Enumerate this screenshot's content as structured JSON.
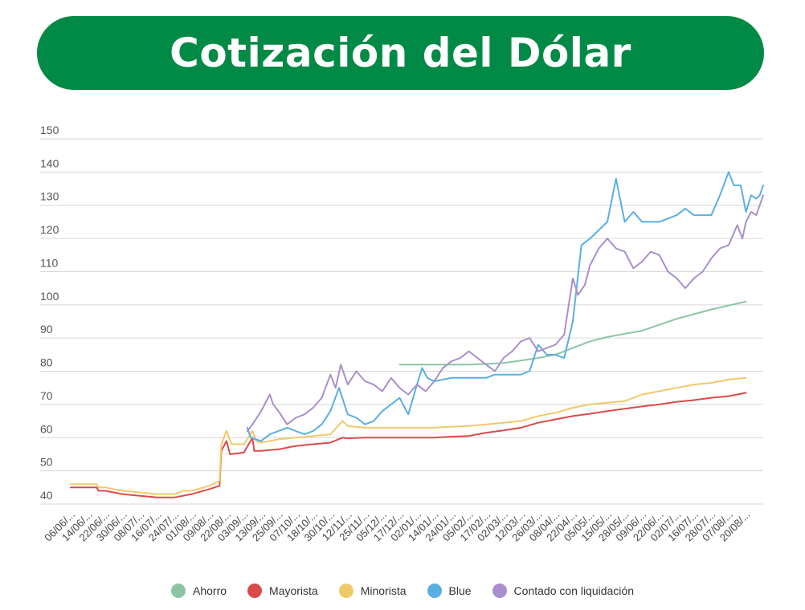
{
  "header": {
    "title": "Cotización del Dólar"
  },
  "chart_data": {
    "type": "line",
    "title": "Cotización del Dólar",
    "xlabel": "",
    "ylabel": "",
    "ylim": [
      40,
      150
    ],
    "yticks": [
      40,
      50,
      60,
      70,
      80,
      90,
      100,
      110,
      120,
      130,
      140,
      150
    ],
    "grid": true,
    "legend": "bottom",
    "x_tick_labels": [
      "06/06/...",
      "14/06/...",
      "22/06/...",
      "30/06/...",
      "08/07/...",
      "16/07/...",
      "24/07/...",
      "01/08/...",
      "09/08/...",
      "22/08/...",
      "03/09/...",
      "13/09/...",
      "25/09/...",
      "07/10/...",
      "18/10/...",
      "30/10/...",
      "12/11/...",
      "25/11/...",
      "05/12/...",
      "17/12/...",
      "02/01/...",
      "14/01/...",
      "24/01/...",
      "05/02/...",
      "17/02/...",
      "02/03/...",
      "12/03/...",
      "26/03/...",
      "08/04/...",
      "22/04/...",
      "05/05/...",
      "15/05/...",
      "28/05/...",
      "09/06/...",
      "22/06/...",
      "02/07/...",
      "16/07/...",
      "28/07/...",
      "07/08/...",
      "20/08/..."
    ],
    "series": [
      {
        "name": "Ahorro",
        "color": "#8cc5a4",
        "points": [
          [
            19.0,
            82
          ],
          [
            19.5,
            82
          ],
          [
            20,
            82
          ],
          [
            21,
            82
          ],
          [
            22,
            82
          ],
          [
            23,
            82
          ],
          [
            24,
            82.2
          ],
          [
            25,
            82.5
          ],
          [
            26,
            83.2
          ],
          [
            27,
            84
          ],
          [
            28,
            85
          ],
          [
            29,
            87
          ],
          [
            30,
            89
          ],
          [
            31,
            90.3
          ],
          [
            32,
            91.3
          ],
          [
            33,
            92.2
          ],
          [
            34,
            94
          ],
          [
            35,
            95.8
          ],
          [
            36,
            97.2
          ],
          [
            37,
            98.6
          ],
          [
            38,
            99.8
          ],
          [
            39,
            101
          ]
        ]
      },
      {
        "name": "Mayorista",
        "color": "#d94b4b",
        "points": [
          [
            0,
            45
          ],
          [
            1.5,
            45
          ],
          [
            1.6,
            44
          ],
          [
            2,
            44
          ],
          [
            3,
            43
          ],
          [
            4,
            42.5
          ],
          [
            5,
            42
          ],
          [
            6,
            42
          ],
          [
            7,
            43
          ],
          [
            8,
            44.5
          ],
          [
            8.6,
            45.5
          ],
          [
            8.7,
            56
          ],
          [
            9.0,
            59
          ],
          [
            9.2,
            55
          ],
          [
            10,
            55.5
          ],
          [
            10.5,
            60
          ],
          [
            10.6,
            56
          ],
          [
            11,
            56
          ],
          [
            12,
            56.5
          ],
          [
            13,
            57.5
          ],
          [
            14,
            58
          ],
          [
            15,
            58.5
          ],
          [
            15.7,
            60
          ],
          [
            16,
            59.8
          ],
          [
            17,
            60
          ],
          [
            18,
            60
          ],
          [
            19,
            60
          ],
          [
            20,
            60
          ],
          [
            21,
            60
          ],
          [
            22,
            60.3
          ],
          [
            23,
            60.5
          ],
          [
            24,
            61.5
          ],
          [
            25,
            62.2
          ],
          [
            26,
            63
          ],
          [
            27,
            64.5
          ],
          [
            28,
            65.5
          ],
          [
            29,
            66.5
          ],
          [
            30,
            67.2
          ],
          [
            31,
            68
          ],
          [
            32,
            68.7
          ],
          [
            33,
            69.4
          ],
          [
            34,
            70
          ],
          [
            35,
            70.8
          ],
          [
            36,
            71.3
          ],
          [
            37,
            72
          ],
          [
            38,
            72.5
          ],
          [
            39,
            73.5
          ]
        ]
      },
      {
        "name": "Minorista",
        "color": "#f0c96b",
        "points": [
          [
            0,
            46
          ],
          [
            1.5,
            46
          ],
          [
            1.6,
            45
          ],
          [
            2,
            45
          ],
          [
            3,
            44
          ],
          [
            4,
            43.5
          ],
          [
            5,
            43
          ],
          [
            6,
            43
          ],
          [
            6.5,
            44
          ],
          [
            7,
            44
          ],
          [
            8,
            45.5
          ],
          [
            8.6,
            47
          ],
          [
            8.7,
            58
          ],
          [
            9.0,
            62
          ],
          [
            9.3,
            58
          ],
          [
            10,
            58
          ],
          [
            10.5,
            62
          ],
          [
            10.7,
            59
          ],
          [
            11,
            58.5
          ],
          [
            12,
            59.5
          ],
          [
            13,
            60
          ],
          [
            14,
            60.5
          ],
          [
            15,
            61
          ],
          [
            15.7,
            65
          ],
          [
            16,
            63.5
          ],
          [
            17,
            63
          ],
          [
            18,
            63
          ],
          [
            19,
            63
          ],
          [
            20,
            63
          ],
          [
            21,
            63
          ],
          [
            22,
            63.3
          ],
          [
            23,
            63.5
          ],
          [
            24,
            64
          ],
          [
            25,
            64.5
          ],
          [
            26,
            65
          ],
          [
            27,
            66.5
          ],
          [
            28,
            67.5
          ],
          [
            29,
            69
          ],
          [
            30,
            70
          ],
          [
            31,
            70.5
          ],
          [
            32,
            71
          ],
          [
            33,
            73
          ],
          [
            34,
            74
          ],
          [
            35,
            75
          ],
          [
            36,
            76
          ],
          [
            37,
            76.5
          ],
          [
            38,
            77.5
          ],
          [
            39,
            78
          ]
        ]
      },
      {
        "name": "Blue",
        "color": "#5aafe0",
        "points": [
          [
            10.2,
            63
          ],
          [
            10.4,
            60
          ],
          [
            11,
            59
          ],
          [
            11.5,
            61
          ],
          [
            12,
            62
          ],
          [
            12.5,
            63
          ],
          [
            13,
            62
          ],
          [
            13.5,
            61
          ],
          [
            14,
            62
          ],
          [
            14.5,
            64
          ],
          [
            15,
            68
          ],
          [
            15.5,
            75
          ],
          [
            16,
            67
          ],
          [
            16.5,
            66
          ],
          [
            17,
            64
          ],
          [
            17.5,
            65
          ],
          [
            18,
            68
          ],
          [
            18.5,
            70
          ],
          [
            19,
            72
          ],
          [
            19.5,
            67
          ],
          [
            20,
            76
          ],
          [
            20.3,
            81
          ],
          [
            20.6,
            78
          ],
          [
            21,
            77
          ],
          [
            22,
            78
          ],
          [
            23,
            78
          ],
          [
            24,
            78
          ],
          [
            24.5,
            79
          ],
          [
            25,
            79
          ],
          [
            26,
            79
          ],
          [
            26.5,
            80
          ],
          [
            27,
            88
          ],
          [
            27.5,
            85
          ],
          [
            28,
            85
          ],
          [
            28.5,
            84
          ],
          [
            29,
            95
          ],
          [
            29.5,
            118
          ],
          [
            30,
            120
          ],
          [
            31,
            125
          ],
          [
            31.5,
            138
          ],
          [
            32,
            125
          ],
          [
            32.5,
            128
          ],
          [
            33,
            125
          ],
          [
            34,
            125
          ],
          [
            35,
            127
          ],
          [
            35.5,
            129
          ],
          [
            36,
            127
          ],
          [
            37,
            127
          ],
          [
            37.5,
            133
          ],
          [
            38,
            140
          ],
          [
            38.3,
            136
          ],
          [
            38.7,
            136
          ],
          [
            39,
            128
          ],
          [
            39.3,
            133
          ],
          [
            39.6,
            132
          ],
          [
            39.8,
            133
          ],
          [
            40,
            136
          ]
        ]
      },
      {
        "name": "Contado con liquidación",
        "color": "#a98fcb",
        "points": [
          [
            10.2,
            62
          ],
          [
            10.5,
            64
          ],
          [
            11,
            68
          ],
          [
            11.5,
            73
          ],
          [
            11.7,
            70
          ],
          [
            12,
            68
          ],
          [
            12.5,
            64
          ],
          [
            13,
            66
          ],
          [
            13.5,
            67
          ],
          [
            14,
            69
          ],
          [
            14.5,
            72
          ],
          [
            15,
            79
          ],
          [
            15.3,
            75
          ],
          [
            15.6,
            82
          ],
          [
            16,
            76
          ],
          [
            16.5,
            80
          ],
          [
            17,
            77
          ],
          [
            17.5,
            76
          ],
          [
            18,
            74
          ],
          [
            18.5,
            78
          ],
          [
            19,
            75
          ],
          [
            19.5,
            73
          ],
          [
            20,
            76
          ],
          [
            20.5,
            74
          ],
          [
            21,
            77
          ],
          [
            21.5,
            81
          ],
          [
            22,
            83
          ],
          [
            22.5,
            84
          ],
          [
            23,
            86
          ],
          [
            23.5,
            84
          ],
          [
            24,
            82
          ],
          [
            24.5,
            80
          ],
          [
            25,
            84
          ],
          [
            25.5,
            86
          ],
          [
            26,
            89
          ],
          [
            26.5,
            90
          ],
          [
            27,
            86
          ],
          [
            27.5,
            87
          ],
          [
            28,
            88
          ],
          [
            28.5,
            91
          ],
          [
            29,
            108
          ],
          [
            29.3,
            103
          ],
          [
            29.7,
            106
          ],
          [
            30,
            112
          ],
          [
            30.5,
            117
          ],
          [
            31,
            120
          ],
          [
            31.5,
            117
          ],
          [
            32,
            116
          ],
          [
            32.5,
            111
          ],
          [
            33,
            113
          ],
          [
            33.5,
            116
          ],
          [
            34,
            115
          ],
          [
            34.5,
            110
          ],
          [
            35,
            108
          ],
          [
            35.5,
            105
          ],
          [
            36,
            108
          ],
          [
            36.5,
            110
          ],
          [
            37,
            114
          ],
          [
            37.5,
            117
          ],
          [
            38,
            118
          ],
          [
            38.5,
            124
          ],
          [
            38.8,
            120
          ],
          [
            39,
            125
          ],
          [
            39.3,
            128
          ],
          [
            39.6,
            127
          ],
          [
            39.8,
            130
          ],
          [
            40,
            133
          ]
        ]
      }
    ]
  }
}
